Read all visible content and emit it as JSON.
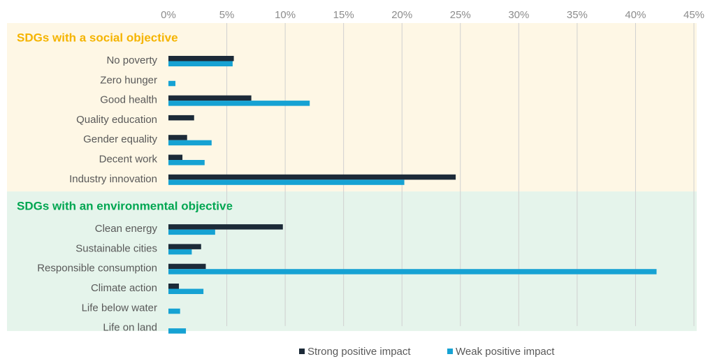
{
  "chart_data": {
    "type": "bar",
    "orientation": "horizontal",
    "groups": [
      {
        "label": "SDGs with a social objective",
        "color": "#f5b400",
        "background": "#fef7e5",
        "categories": [
          "No poverty",
          "Zero hunger",
          "Good health",
          "Quality education",
          "Gender equality",
          "Decent work",
          "Industry innovation"
        ]
      },
      {
        "label": "SDGs with an environmental objective",
        "color": "#00a651",
        "background": "#e5f4eb",
        "categories": [
          "Clean energy",
          "Sustainable cities",
          "Responsible consumption",
          "Climate action",
          "Life below water",
          "Life on land"
        ]
      }
    ],
    "series": [
      {
        "name": "Strong positive impact",
        "color": "#1c2a38",
        "values": [
          5.6,
          0,
          7.1,
          2.2,
          1.6,
          1.2,
          24.6,
          9.8,
          2.8,
          3.2,
          0.9,
          0,
          0
        ]
      },
      {
        "name": "Weak positive impact",
        "color": "#16a2d3",
        "values": [
          5.5,
          0.6,
          12.1,
          0,
          3.7,
          3.1,
          20.2,
          4.0,
          2.0,
          41.8,
          3.0,
          1.0,
          1.5
        ]
      }
    ],
    "xlim": [
      0,
      45
    ],
    "xticks": [
      {
        "value": 0,
        "label": "0%"
      },
      {
        "value": 5,
        "label": "5%"
      },
      {
        "value": 10,
        "label": "10%"
      },
      {
        "value": 15,
        "label": "15%"
      },
      {
        "value": 20,
        "label": "20%"
      },
      {
        "value": 25,
        "label": "25%"
      },
      {
        "value": 30,
        "label": "30%"
      },
      {
        "value": 35,
        "label": "35%"
      },
      {
        "value": 40,
        "label": "40%"
      },
      {
        "value": 45,
        "label": "45%"
      }
    ],
    "grid": true,
    "legend": "bottom"
  }
}
